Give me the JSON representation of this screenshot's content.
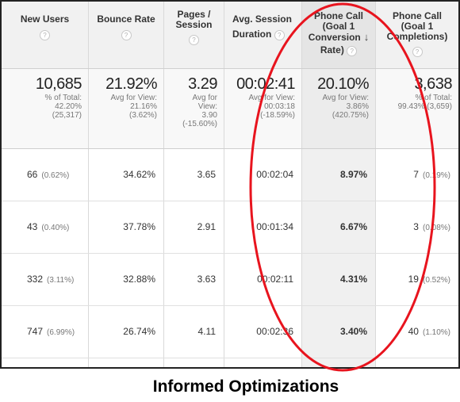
{
  "columns": [
    {
      "title": "New Users"
    },
    {
      "title": "Bounce Rate"
    },
    {
      "title_l1": "Pages /",
      "title_l2": "Session"
    },
    {
      "title_l1": "Avg. Session",
      "title_l2": "Duration"
    },
    {
      "title_l1": "Phone Call",
      "title_l2": "(Goal 1",
      "title_l3": "Conversion",
      "title_l4": "Rate)"
    },
    {
      "title_l1": "Phone Call",
      "title_l2": "(Goal 1",
      "title_l3": "Completions)"
    }
  ],
  "help_glyph": "?",
  "sort_arrow": "↓",
  "summary": {
    "new_users": {
      "value": "10,685",
      "line1": "% of Total:",
      "line2": "42.20%",
      "line3": "(25,317)"
    },
    "bounce_rate": {
      "value": "21.92%",
      "line1": "Avg for View:",
      "line2": "21.16%",
      "line3": "(3.62%)"
    },
    "pages_session": {
      "value": "3.29",
      "line1": "Avg for",
      "line2": "View:",
      "line3": "3.90",
      "line4": "(-15.60%)"
    },
    "avg_duration": {
      "value": "00:02:41",
      "line1": "Avg for View:",
      "line2": "00:03:18",
      "line3": "(-18.59%)"
    },
    "conv_rate": {
      "value": "20.10%",
      "line1": "Avg for View:",
      "line2": "3.86%",
      "line3": "(420.75%)"
    },
    "completions": {
      "value": "3,638",
      "line1": "% of Total:",
      "line2": "99.43% (3,659)"
    }
  },
  "rows": [
    {
      "new_users": "66",
      "new_users_pct": "(0.62%)",
      "bounce": "34.62%",
      "pages": "3.65",
      "duration": "00:02:04",
      "conv": "8.97%",
      "comp": "7",
      "comp_pct": "(0.19%)"
    },
    {
      "new_users": "43",
      "new_users_pct": "(0.40%)",
      "bounce": "37.78%",
      "pages": "2.91",
      "duration": "00:01:34",
      "conv": "6.67%",
      "comp": "3",
      "comp_pct": "(0.08%)"
    },
    {
      "new_users": "332",
      "new_users_pct": "(3.11%)",
      "bounce": "32.88%",
      "pages": "3.63",
      "duration": "00:02:11",
      "conv": "4.31%",
      "comp": "19",
      "comp_pct": "(0.52%)"
    },
    {
      "new_users": "747",
      "new_users_pct": "(6.99%)",
      "bounce": "26.74%",
      "pages": "4.11",
      "duration": "00:02:36",
      "conv": "3.40%",
      "comp": "40",
      "comp_pct": "(1.10%)"
    }
  ],
  "highlight_color": "#e8141e",
  "caption": "Informed Optimizations"
}
